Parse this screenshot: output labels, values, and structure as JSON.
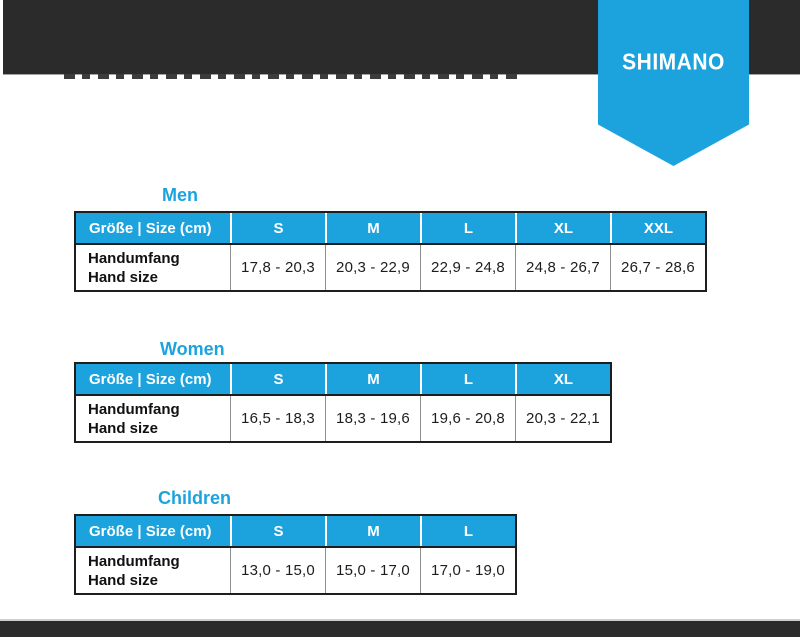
{
  "brand": {
    "logo_text": "SHIMANO",
    "blue": "#1CA3DD",
    "banner_color": "#2B2B2B"
  },
  "sections": [
    {
      "heading": "Men",
      "table": {
        "corner_label": "Größe | Size (cm)",
        "row_label_line1": "Handumfang",
        "row_label_line2": "Hand size",
        "columns": [
          "S",
          "M",
          "L",
          "XL",
          "XXL"
        ],
        "values": [
          "17,8 - 20,3",
          "20,3 - 22,9",
          "22,9 - 24,8",
          "24,8 - 26,7",
          "26,7 - 28,6"
        ]
      }
    },
    {
      "heading": "Women",
      "table": {
        "corner_label": "Größe | Size (cm)",
        "row_label_line1": "Handumfang",
        "row_label_line2": "Hand size",
        "columns": [
          "S",
          "M",
          "L",
          "XL"
        ],
        "values": [
          "16,5 - 18,3",
          "18,3 - 19,6",
          "19,6 - 20,8",
          "20,3 - 22,1"
        ]
      }
    },
    {
      "heading": "Children",
      "table": {
        "corner_label": "Größe | Size (cm)",
        "row_label_line1": "Handumfang",
        "row_label_line2": "Hand size",
        "columns": [
          "S",
          "M",
          "L"
        ],
        "values": [
          "13,0 - 15,0",
          "15,0 - 17,0",
          "17,0 - 19,0"
        ]
      }
    }
  ]
}
